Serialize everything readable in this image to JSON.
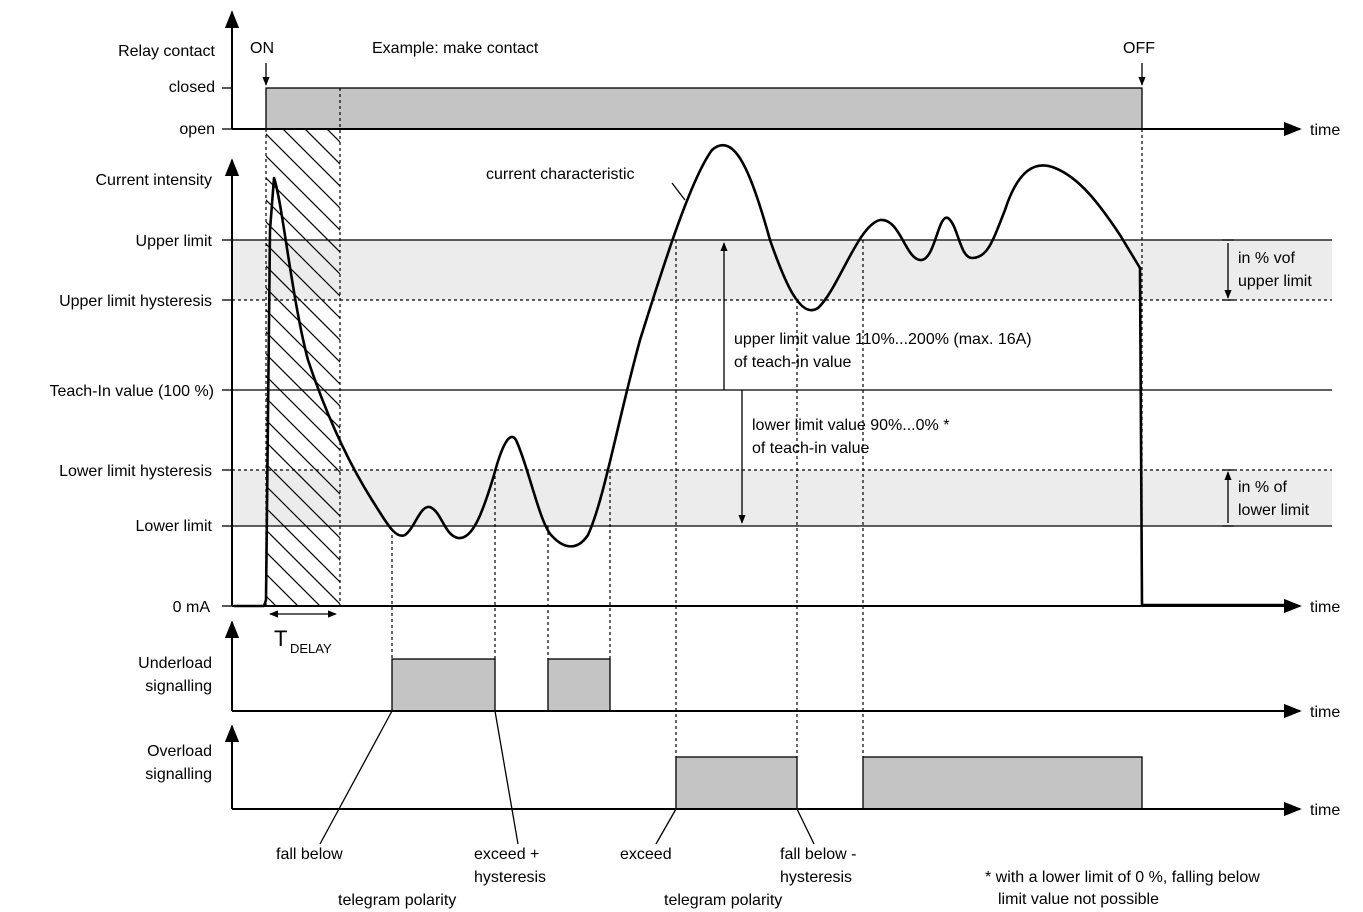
{
  "left_labels": {
    "relay_contact": "Relay contact",
    "closed": "closed",
    "open": "open",
    "current_intensity": "Current intensity",
    "upper_limit": "Upper limit",
    "upper_limit_hysteresis": "Upper limit hysteresis",
    "teach_in": "Teach-In value (100 %)",
    "lower_limit_hysteresis": "Lower limit hysteresis",
    "lower_limit": "Lower limit",
    "zero": "0 mA",
    "underload_1": "Underload",
    "underload_2": "signalling",
    "overload_1": "Overload",
    "overload_2": "signalling"
  },
  "markers": {
    "on": "ON",
    "off": "OFF"
  },
  "example": "Example: make contact",
  "time_label": "time",
  "tdelay": {
    "main": "T",
    "sub": "DELAY"
  },
  "annotations": {
    "current_characteristic": "current characteristic",
    "upper_value_1": "upper limit value 110%...200% (max. 16A)",
    "upper_value_2": "of teach-in value",
    "lower_value_1": "lower limit value 90%...0% *",
    "lower_value_2": "of teach-in value",
    "upper_hyst_1": "in % vof",
    "upper_hyst_2": "upper limit",
    "lower_hyst_1": "in % of",
    "lower_hyst_2": "lower limit"
  },
  "bottom": {
    "fall_below": "fall below",
    "exceed_hyst_1": "exceed +",
    "exceed_hyst_2": "hysteresis",
    "telegram_polarity_1": "telegram polarity",
    "exceed": "exceed",
    "fall_below_hyst_1": "fall below -",
    "fall_below_hyst_2": "hysteresis",
    "telegram_polarity_2": "telegram polarity",
    "footnote_1": "* with a lower limit of 0 %, falling below",
    "footnote_2": "limit value not possible"
  }
}
